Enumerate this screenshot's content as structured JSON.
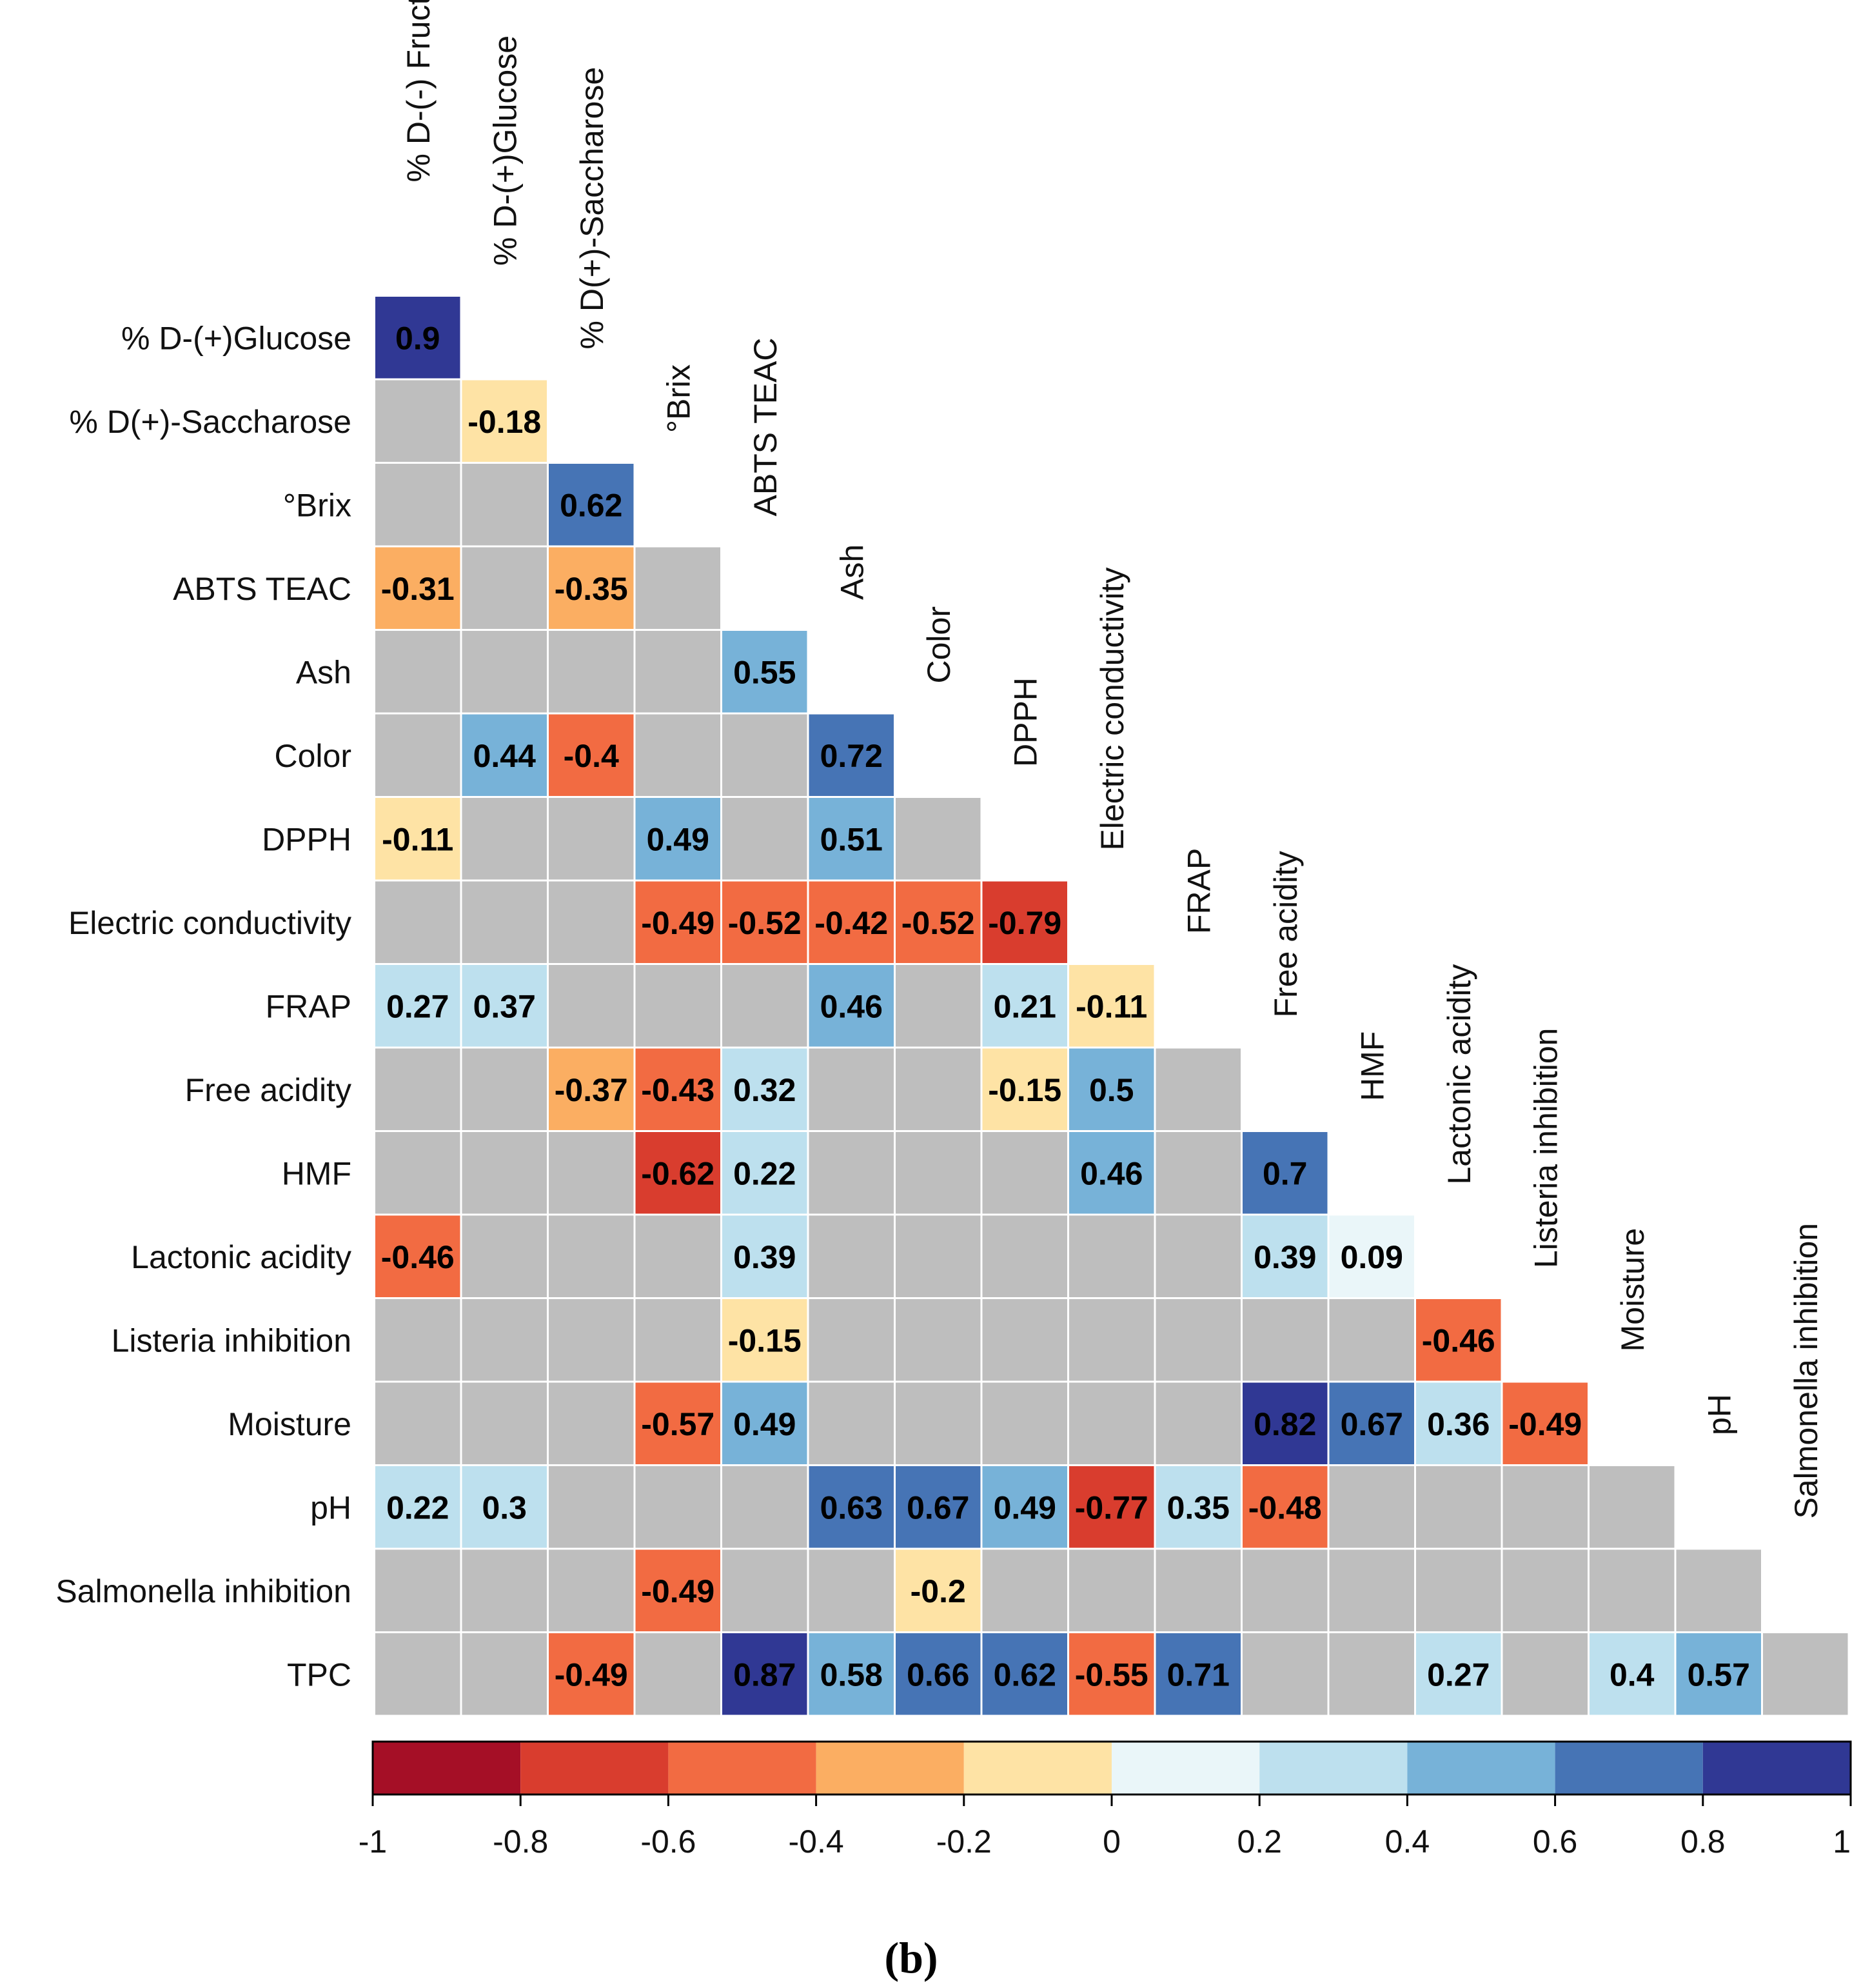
{
  "chart_data": {
    "type": "heatmap",
    "title": "",
    "subtitle": "",
    "caption": "(b)",
    "variables": [
      "% D-(-) Fructose",
      "% D-(+)Glucose",
      "% D(+)-Saccharose",
      "°Brix",
      "ABTS TEAC",
      "Ash",
      "Color",
      "DPPH",
      "Electric conductivity",
      "FRAP",
      "Free acidity",
      "HMF",
      "Lactonic acidity",
      "Listeria inhibition",
      "Moisture",
      "pH",
      "Salmonella inhibition",
      "TPC"
    ],
    "row_labels": [
      "% D-(+)Glucose",
      "% D(+)-Saccharose",
      "°Brix",
      "ABTS TEAC",
      "Ash",
      "Color",
      "DPPH",
      "Electric conductivity",
      "FRAP",
      "Free acidity",
      "HMF",
      "Lactonic acidity",
      "Listeria inhibition",
      "Moisture",
      "pH",
      "Salmonella inhibition",
      "TPC"
    ],
    "matrix": [
      [
        0.9
      ],
      [
        null,
        -0.18
      ],
      [
        null,
        null,
        0.62
      ],
      [
        -0.31,
        null,
        -0.35,
        null
      ],
      [
        null,
        null,
        null,
        null,
        0.55
      ],
      [
        null,
        0.44,
        -0.4,
        null,
        null,
        0.72
      ],
      [
        -0.11,
        null,
        null,
        0.49,
        null,
        0.51,
        null
      ],
      [
        null,
        null,
        null,
        -0.49,
        -0.52,
        -0.42,
        -0.52,
        -0.79
      ],
      [
        0.27,
        0.37,
        null,
        null,
        null,
        0.46,
        null,
        0.21,
        -0.11
      ],
      [
        null,
        null,
        -0.37,
        -0.43,
        0.32,
        null,
        null,
        -0.15,
        0.5,
        null
      ],
      [
        null,
        null,
        null,
        -0.62,
        0.22,
        null,
        null,
        null,
        0.46,
        null,
        0.7
      ],
      [
        -0.46,
        null,
        null,
        null,
        0.39,
        null,
        null,
        null,
        null,
        null,
        0.39,
        0.09
      ],
      [
        null,
        null,
        null,
        null,
        -0.15,
        null,
        null,
        null,
        null,
        null,
        null,
        null,
        -0.46
      ],
      [
        null,
        null,
        null,
        -0.57,
        0.49,
        null,
        null,
        null,
        null,
        null,
        0.82,
        0.67,
        0.36,
        -0.49
      ],
      [
        0.22,
        0.3,
        null,
        null,
        null,
        0.63,
        0.67,
        0.49,
        -0.77,
        0.35,
        -0.48,
        null,
        null,
        null,
        null
      ],
      [
        null,
        null,
        null,
        -0.49,
        null,
        null,
        -0.2,
        null,
        null,
        null,
        null,
        null,
        null,
        null,
        null,
        null
      ],
      [
        null,
        null,
        -0.49,
        null,
        0.87,
        0.58,
        0.66,
        0.62,
        -0.55,
        0.71,
        null,
        null,
        0.27,
        null,
        0.4,
        0.57,
        null
      ]
    ],
    "colorbar": {
      "ticks": [
        "-1",
        "-0.8",
        "-0.6",
        "-0.4",
        "-0.2",
        "0",
        "0.2",
        "0.4",
        "0.6",
        "0.8",
        "1"
      ],
      "range": [
        -1,
        1
      ],
      "colors": [
        "#a50f26",
        "#d93d2e",
        "#f26b42",
        "#fbae62",
        "#fee3a5",
        "#eaf6f9",
        "#bde0ee",
        "#77b2d8",
        "#4674b5",
        "#303894"
      ]
    },
    "na_color": "#bebebe"
  }
}
